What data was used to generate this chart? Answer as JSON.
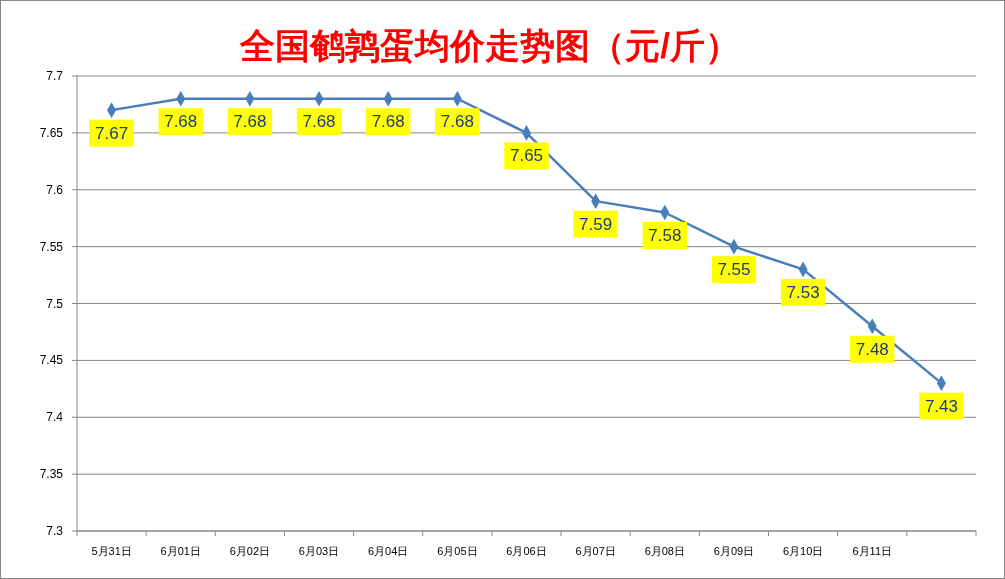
{
  "chart_data": {
    "type": "line",
    "title": "全国鹌鹑蛋均价走势图（元/斤）",
    "categories": [
      "5月31日",
      "6月01日",
      "6月02日",
      "6月03日",
      "6月04日",
      "6月05日",
      "6月06日",
      "6月07日",
      "6月08日",
      "6月09日",
      "6月10日",
      "6月11日",
      null
    ],
    "series": [
      {
        "color": "#4a7ebb",
        "values": [
          7.67,
          7.68,
          7.68,
          7.68,
          7.68,
          7.68,
          7.65,
          7.59,
          7.58,
          7.55,
          7.53,
          7.48,
          7.43
        ]
      }
    ],
    "ylim": [
      7.3,
      7.7
    ],
    "yticks": [
      7.3,
      7.35,
      7.4,
      7.45,
      7.5,
      7.55,
      7.6,
      7.65,
      7.7
    ],
    "grid": "y",
    "marker": "diamond",
    "data_labels": true
  }
}
